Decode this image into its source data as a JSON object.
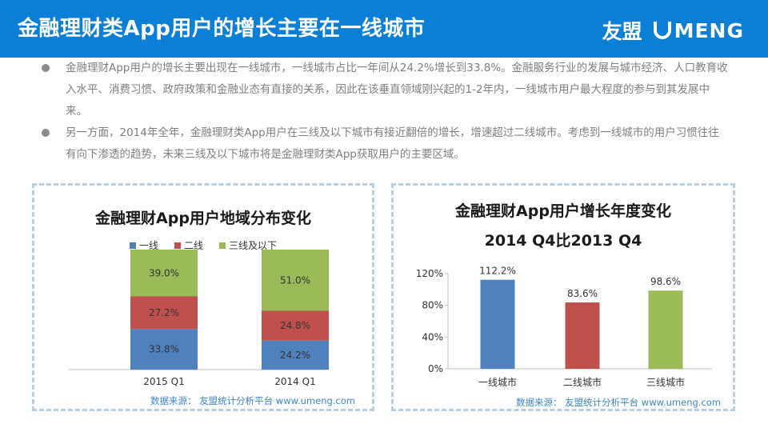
{
  "header": {
    "title": "金融理财类App用户的增长主要在一线城市",
    "logo_cn": "友盟",
    "logo_en": "MENG"
  },
  "bullets": [
    "金融理财App用户的增长主要出现在一线城市，一线城市占比一年间从24.2%增长到33.8%。金融服务行业的发展与城市经济、人口教育收入水平、消费习惯、政府政策和金融业态有直接的关系，因此在该垂直领域刚兴起的1-2年内，一线城市用户最大程度的参与到其发展中来。",
    "另一方面，2014年全年，金融理财类App用户在三线及以下城市有接近翻倍的增长，增速超过二线城市。考虑到一线城市的用户习惯往往有向下渗透的趋势，未来三线及以下城市将是金融理财类App获取用户的主要区域。"
  ],
  "colors": {
    "tier1": "#4f81bd",
    "tier2": "#c0504d",
    "tier3": "#9bbb59",
    "header": "#0b7fd6"
  },
  "chart_data": [
    {
      "type": "bar",
      "stacked": true,
      "title": "金融理财App用户地域分布变化",
      "categories": [
        "2015 Q1",
        "2014 Q1"
      ],
      "series": [
        {
          "name": "一线",
          "values": [
            33.8,
            24.2
          ],
          "labels": [
            "33.8%",
            "24.2%"
          ]
        },
        {
          "name": "二线",
          "values": [
            27.2,
            24.8
          ],
          "labels": [
            "27.2%",
            "24.8%"
          ]
        },
        {
          "name": "三线及以下",
          "values": [
            39.0,
            51.0
          ],
          "labels": [
            "39.0%",
            "51.0%"
          ]
        }
      ],
      "xlabel": "",
      "ylabel": "",
      "ylim": [
        0,
        100
      ],
      "legend": "top",
      "source": "数据来源： 友盟统计分析平台 www.umeng.com"
    },
    {
      "type": "bar",
      "title": "金融理财App用户增长年度变化",
      "subtitle": "2014 Q4比2013 Q4",
      "categories": [
        "一线城市",
        "二线城市",
        "三线城市"
      ],
      "values": [
        112.2,
        83.6,
        98.6
      ],
      "labels": [
        "112.2%",
        "83.6%",
        "98.6%"
      ],
      "ylim": [
        0,
        120
      ],
      "yticks": [
        "0%",
        "40%",
        "80%",
        "120%"
      ],
      "xlabel": "",
      "ylabel": "",
      "source": "数据来源： 友盟统计分析平台 www.umeng.com"
    }
  ]
}
